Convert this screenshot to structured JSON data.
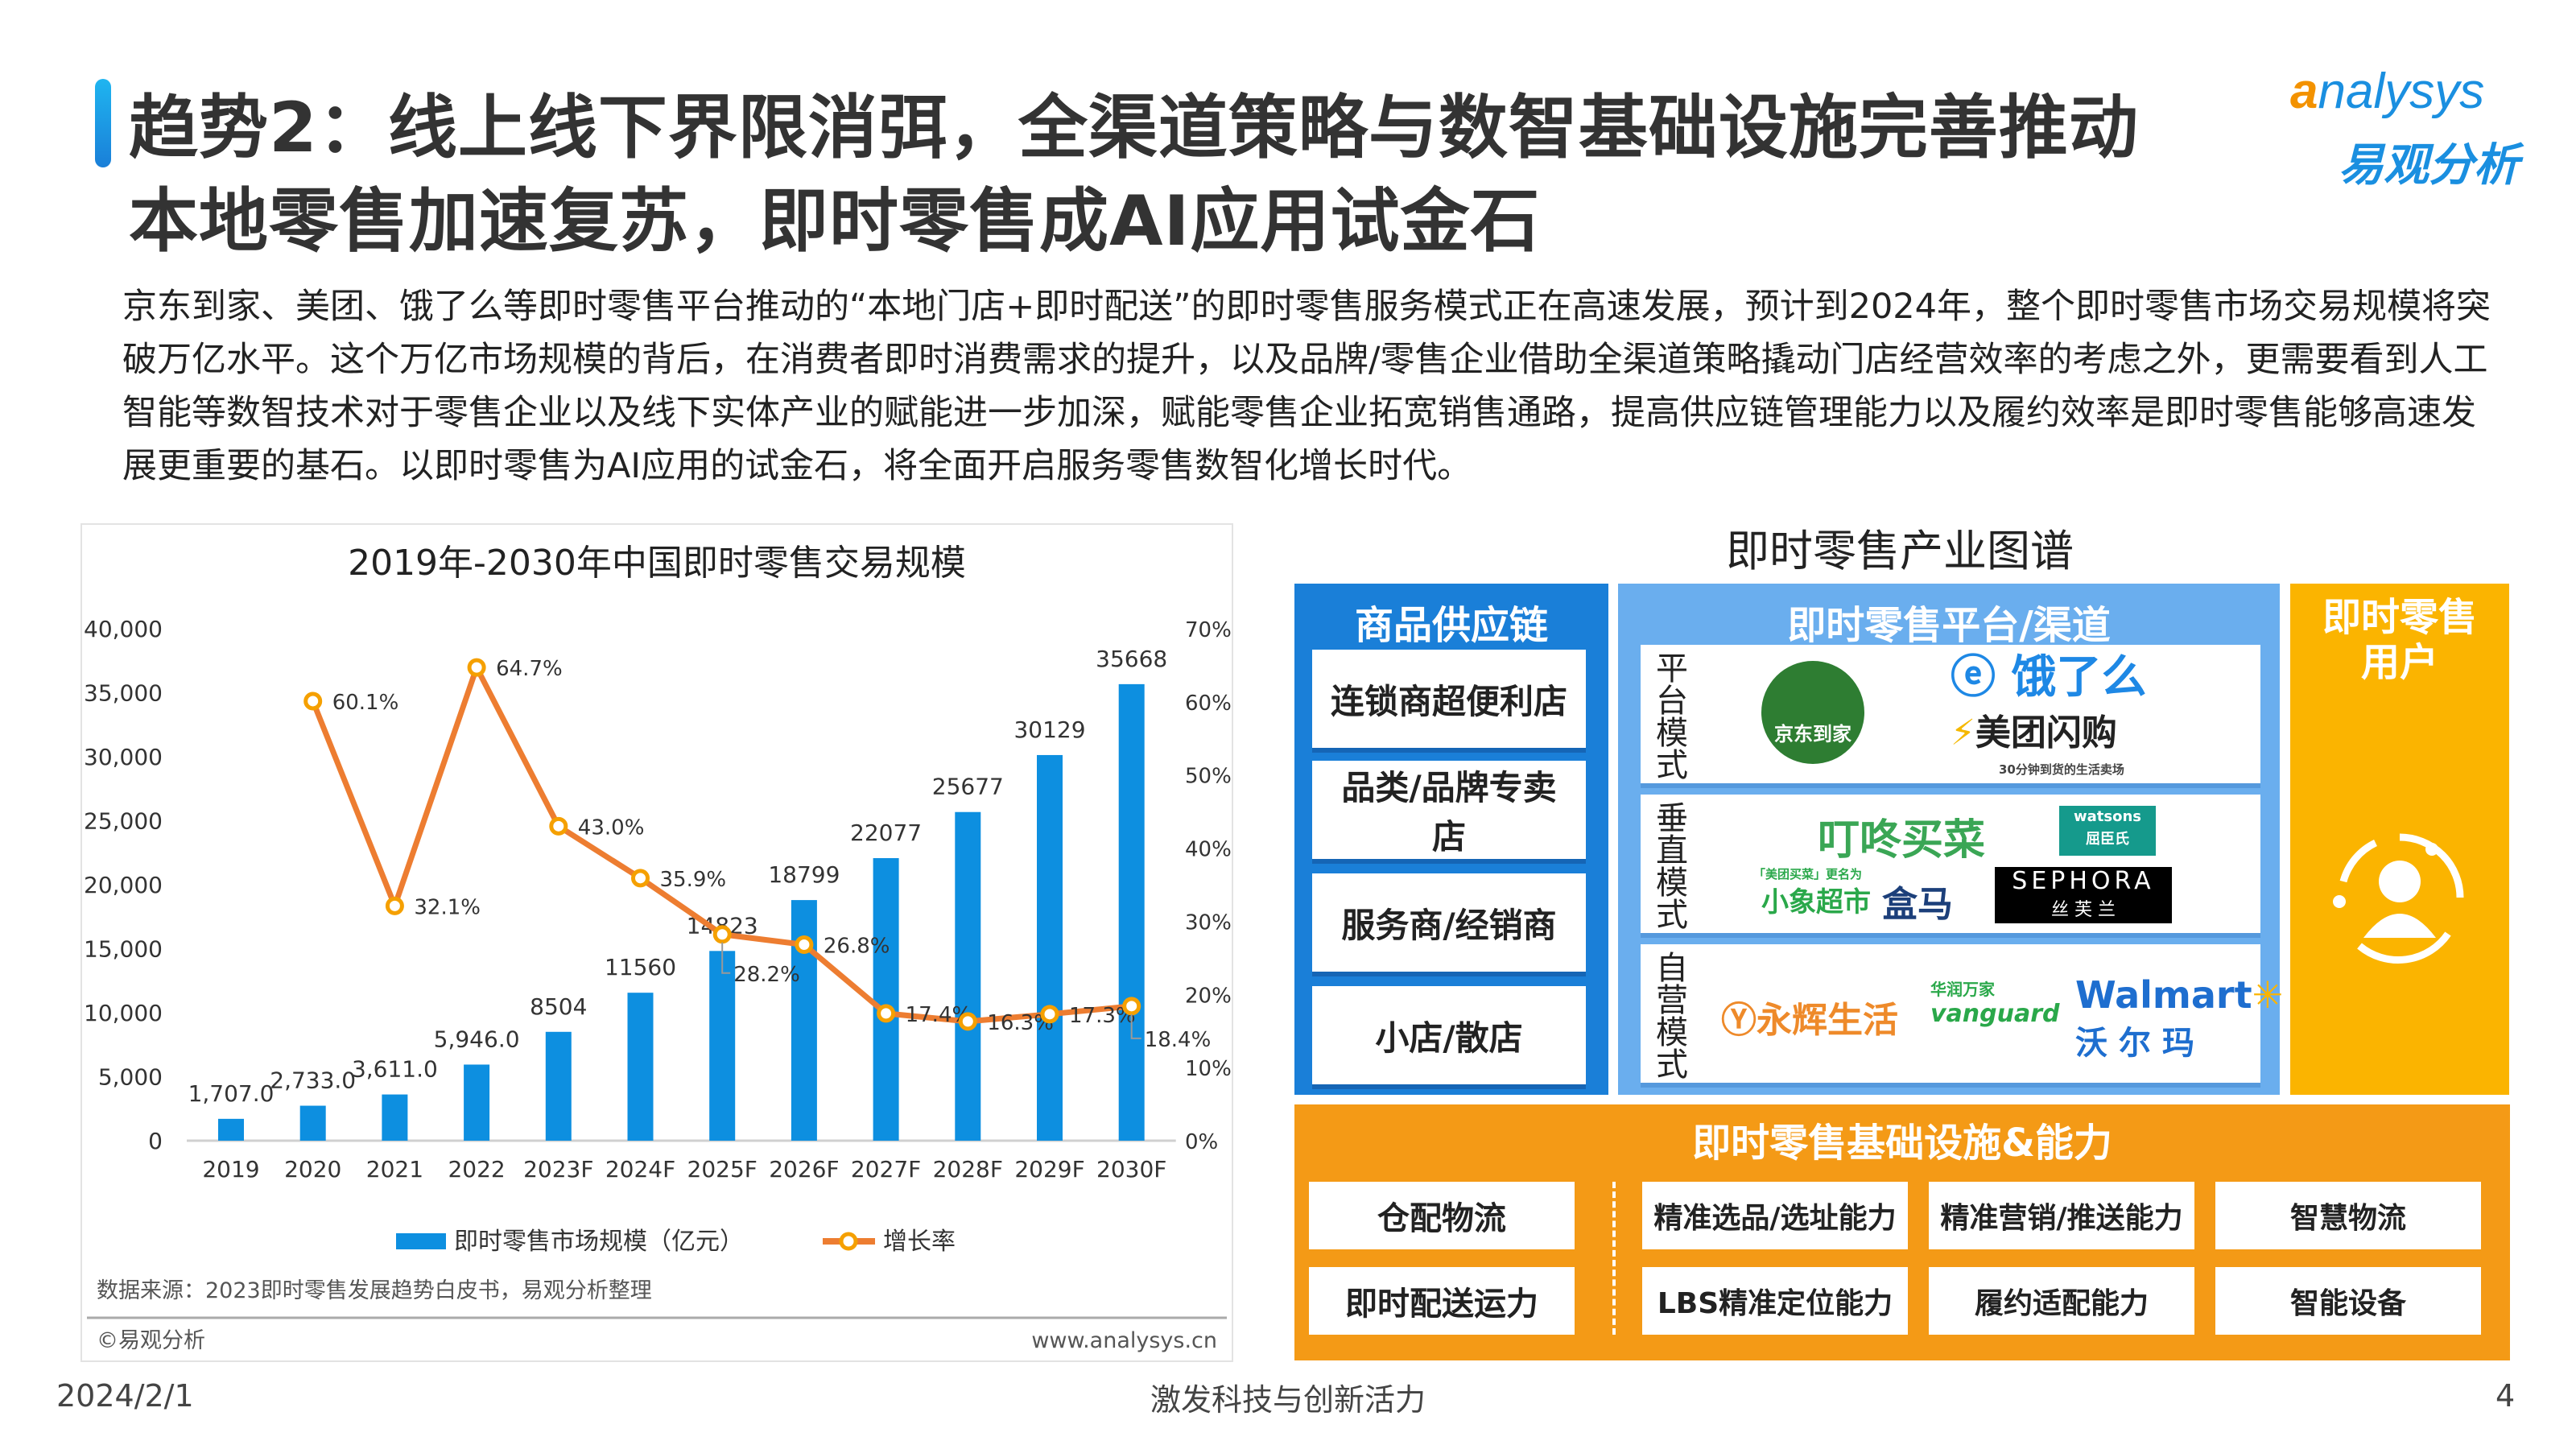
{
  "header": {
    "title_line1": "趋势2：线上线下界限消弭，全渠道策略与数智基础设施完善推动",
    "title_line2": "本地零售加速复苏，即时零售成AI应用试金石",
    "logo_en": "analysys",
    "logo_cn": "易观分析",
    "accent_color": "#1a8fe0"
  },
  "paragraph": "京东到家、美团、饿了么等即时零售平台推动的“本地门店+即时配送”的即时零售服务模式正在高速发展，预计到2024年，整个即时零售市场交易规模将突破万亿水平。这个万亿市场规模的背后，在消费者即时消费需求的提升，以及品牌/零售企业借助全渠道策略撬动门店经营效率的考虑之外，更需要看到人工智能等数智技术对于零售企业以及线下实体产业的赋能进一步加深，赋能零售企业拓宽销售通路，提高供应链管理能力以及履约效率是即时零售能够高速发展更重要的基石。以即时零售为AI应用的试金石，将全面开启服务零售数智化增长时代。",
  "chart_data": {
    "type": "bar+line",
    "title": "2019年-2030年中国即时零售交易规模",
    "categories": [
      "2019",
      "2020",
      "2021",
      "2022",
      "2023F",
      "2024F",
      "2025F",
      "2026F",
      "2027F",
      "2028F",
      "2029F",
      "2030F"
    ],
    "series": [
      {
        "name": "即时零售市场规模（亿元）",
        "type": "bar",
        "axis": "left",
        "color": "#0d8fe0",
        "values": [
          1707.0,
          2733.0,
          3611.0,
          5946.0,
          8504,
          11560,
          14823,
          18799,
          22077,
          25677,
          30129,
          35668
        ],
        "labels": [
          "1,707.0",
          "2,733.0",
          "3,611.0",
          "5,946.0",
          "8504",
          "11560",
          "14823",
          "18799",
          "22077",
          "25677",
          "30129",
          "35668"
        ]
      },
      {
        "name": "增长率",
        "type": "line",
        "axis": "right",
        "color": "#ed7d31",
        "marker_color": "#f5a000",
        "values": [
          null,
          60.1,
          32.1,
          64.7,
          43.0,
          35.9,
          28.2,
          26.8,
          17.4,
          16.3,
          17.3,
          18.4
        ],
        "labels": [
          "",
          "60.1%",
          "32.1%",
          "64.7%",
          "43.0%",
          "35.9%",
          "28.2%",
          "26.8%",
          "17.4%",
          "16.3%",
          "17.3%",
          "18.4%"
        ]
      }
    ],
    "y_left": {
      "range": [
        0,
        40000
      ],
      "ticks": [
        "0",
        "5,000",
        "10,000",
        "15,000",
        "20,000",
        "25,000",
        "30,000",
        "35,000",
        "40,000"
      ]
    },
    "y_right": {
      "range": [
        0,
        70
      ],
      "ticks": [
        "0%",
        "10%",
        "20%",
        "30%",
        "40%",
        "50%",
        "60%",
        "70%"
      ]
    },
    "grid": false,
    "legend": "bottom",
    "source": "数据来源：2023即时零售发展趋势白皮书，易观分析整理",
    "copyright": "©易观分析",
    "website": "www.analysys.cn"
  },
  "diagram": {
    "title": "即时零售产业图谱",
    "supply": {
      "heading": "商品供应链",
      "items": [
        "连锁商超便利店",
        "品类/品牌专卖店",
        "服务商/经销商",
        "小店/散店"
      ],
      "color": "#1a7fd8"
    },
    "platform": {
      "heading": "即时零售平台/渠道",
      "color": "#6aaeee",
      "rows": [
        {
          "label": "平台模式",
          "logos": [
            "京东到家",
            "饿了么",
            "美团闪购",
            "30分钟到货的生活卖场"
          ]
        },
        {
          "label": "垂直模式",
          "logos": [
            "叮咚买菜",
            "watsons",
            "屈臣氏",
            "「美团买菜」更名为",
            "小象超市",
            "盒马",
            "SEPHORA",
            "丝 芙 兰"
          ]
        },
        {
          "label": "自营模式",
          "logos": [
            "永辉生活",
            "华润万家",
            "vanguard",
            "Walmart",
            "沃 尔 玛"
          ]
        }
      ]
    },
    "users": {
      "heading": "即时零售用户",
      "icon": "user-circle-icon",
      "color": "#fbb400"
    },
    "infra": {
      "heading": "即时零售基础设施&能力",
      "color": "#f49a16",
      "left_items": [
        "仓配物流",
        "即时配送运力"
      ],
      "right_items": [
        "精准选品/选址能力",
        "精准营销/推送能力",
        "智慧物流",
        "LBS精准定位能力",
        "履约适配能力",
        "智能设备"
      ]
    }
  },
  "footer": {
    "date": "2024/2/1",
    "center": "激发科技与创新活力",
    "page": "4"
  }
}
